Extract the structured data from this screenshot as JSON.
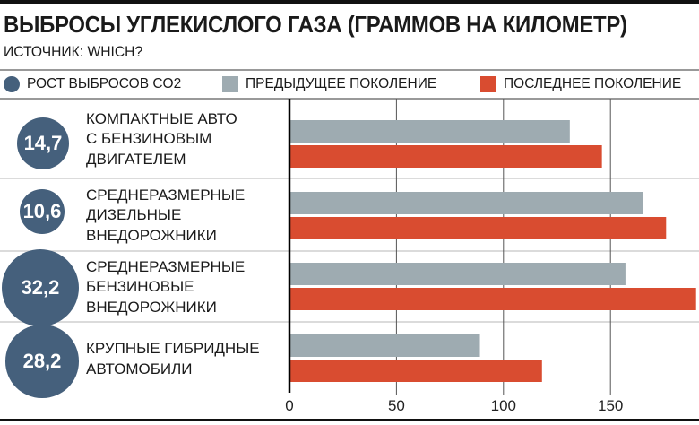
{
  "chart_data": {
    "type": "bar",
    "orientation": "horizontal",
    "title": "ВЫБРОСЫ УГЛЕКИСЛОГО ГАЗА (ГРАММОВ НА КИЛОМЕТР)",
    "subtitle": "ИСТОЧНИК: WHICH?",
    "categories": [
      [
        "КОМПАКТНЫЕ АВТО",
        "С БЕНЗИНОВЫМ",
        "ДВИГАТЕЛЕМ"
      ],
      [
        "СРЕДНЕРАЗМЕРНЫЕ",
        "ДИЗЕЛЬНЫЕ",
        "ВНЕДОРОЖНИКИ"
      ],
      [
        "СРЕДНЕРАЗМЕРНЫЕ",
        "БЕНЗИНОВЫЕ",
        "ВНЕДОРОЖНИКИ"
      ],
      [
        "КРУПНЫЕ ГИБРИДНЫЕ",
        "АВТОМОБИЛИ"
      ]
    ],
    "series": [
      {
        "name": "ПРЕДЫДУЩЕЕ ПОКОЛЕНИЕ",
        "color": "#9eabb1",
        "values": [
          131,
          165,
          157,
          89
        ]
      },
      {
        "name": "ПОСЛЕДНЕЕ ПОКОЛЕНИЕ",
        "color": "#d94c30",
        "values": [
          146,
          176,
          190,
          118
        ]
      }
    ],
    "bubbles": {
      "name": "РОСТ ВЫБРОСОВ CO2",
      "color": "#45607c",
      "values": [
        "14,7",
        "10,6",
        "32,2",
        "28,2"
      ],
      "numeric": [
        14.7,
        10.6,
        32.2,
        28.2
      ]
    },
    "xlim": [
      0,
      190
    ],
    "xticks": [
      "0",
      "50",
      "100",
      "150"
    ],
    "xtick_values": [
      0,
      50,
      100,
      150
    ],
    "grid": true,
    "legend": "top"
  }
}
